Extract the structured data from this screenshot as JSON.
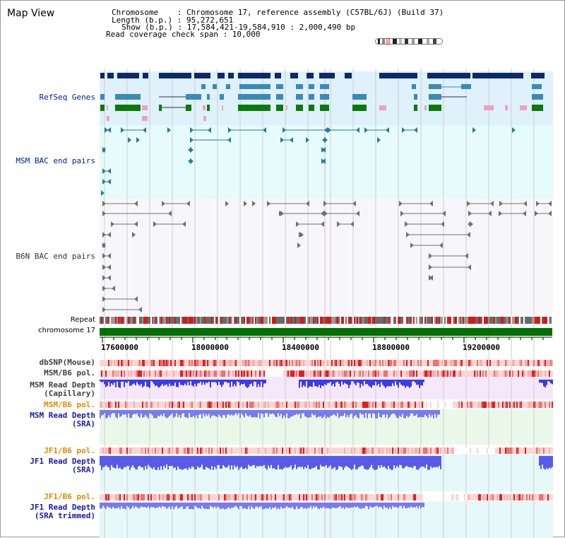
{
  "header": {
    "title": "Map View",
    "chromosome_line": "Chromosome    : Chromosome 17, reference assembly (C57BL/6J) (Build 37)",
    "length_line": "Length (b.p.) : 95,272,651",
    "show_line": "Show (b.p.) : 17,584,421-19,584,910 : 2,000,490 bp",
    "coverage_line": "Read coverage check span : 10,000"
  },
  "tracks": {
    "refseq": "RefSeq Genes",
    "msm_bac": "MSM BAC end pairs",
    "b6n_bac": "B6N BAC end pairs",
    "repeat": "Repeat",
    "chromosome": "chromosome 17",
    "dbsnp": "dbSNP(Mouse)",
    "msm_b6_pol_1": "MSM/B6 pol.",
    "msm_depth_cap_1": "MSM Read Depth",
    "msm_depth_cap_2": "(Capillary)",
    "msm_b6_pol_2": "MSM/B6 pol.",
    "msm_depth_sra_1": "MSM Read Depth",
    "msm_depth_sra_2": "(SRA)",
    "jf1_pol_1": "JF1/B6 pol.",
    "jf1_depth_sra_1": "JF1 Read Depth",
    "jf1_depth_sra_2": "(SRA)",
    "jf1_pol_2": "JF1/B6 pol.",
    "jf1_depth_trim_1": "JF1 Read Depth",
    "jf1_depth_trim_2": "(SRA trimmed)"
  },
  "axis": {
    "ticks": [
      "17600000",
      "18000000",
      "18400000",
      "18800000",
      "19200000"
    ]
  },
  "colors": {
    "refseq_bg": "#dff1fb",
    "msm_bac_bg": "#e6fbfb",
    "b6n_bac_bg": "#f7f7fb",
    "chrom": "#007000",
    "depth_blue": "#5a5ae8",
    "pol_red": "#e04040"
  }
}
